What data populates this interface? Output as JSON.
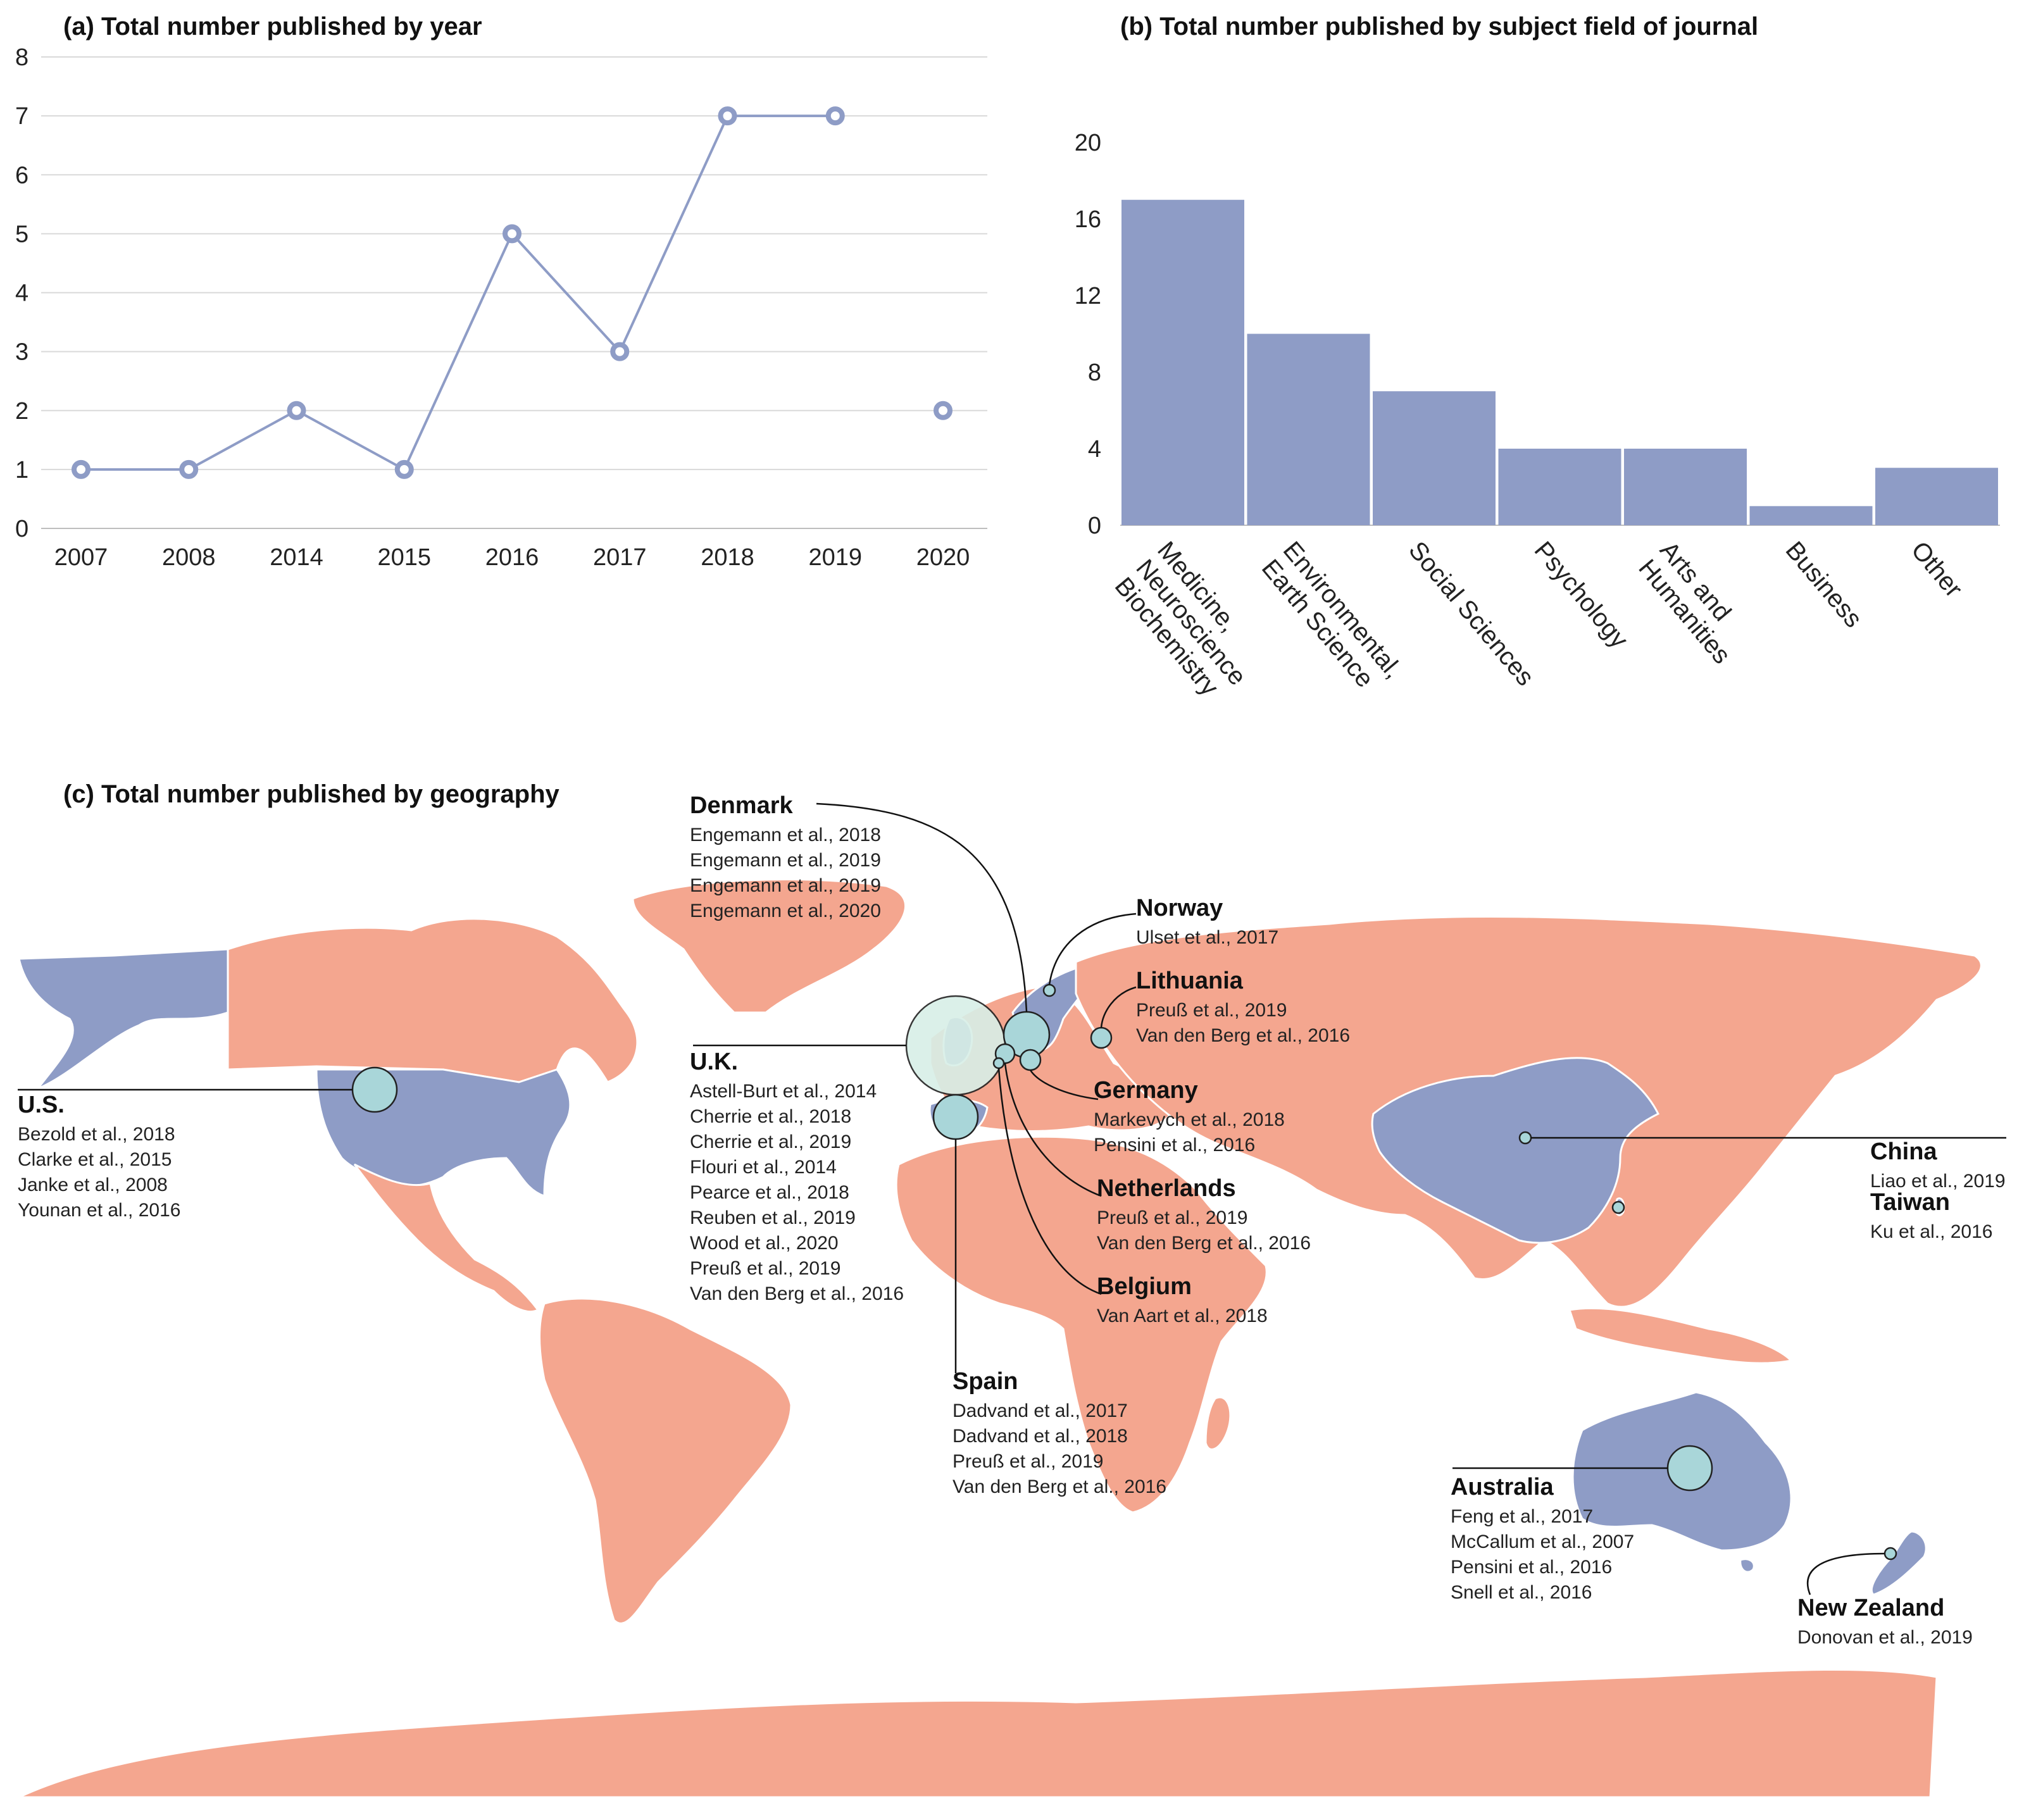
{
  "colors": {
    "series": "#8e9cc6",
    "land": "#f4a68f",
    "highlight_land": "#8e9cc6",
    "bubble": "#a9d6d9"
  },
  "chart_data": [
    {
      "id": "a",
      "type": "line",
      "title": "(a) Total number published by year",
      "categories": [
        "2007",
        "2008",
        "2014",
        "2015",
        "2016",
        "2017",
        "2018",
        "2019",
        "2020"
      ],
      "values": [
        1,
        1,
        2,
        1,
        5,
        3,
        7,
        7,
        2
      ],
      "connected_through_index": 7,
      "ylim": [
        0,
        8
      ],
      "yticks": [
        0,
        1,
        2,
        3,
        4,
        5,
        6,
        7,
        8
      ],
      "grid": true
    },
    {
      "id": "b",
      "type": "bar",
      "title": "(b) Total number published by subject field of journal",
      "categories": [
        "Medicine, Neuroscience, Biochemistry",
        "Environmental, Earth Science",
        "Social Sciences",
        "Psychology",
        "Arts and Humanities",
        "Business",
        "Other"
      ],
      "category_lines": [
        [
          "Medicine,",
          "Neuroscience",
          "Biochemistry"
        ],
        [
          "Environmental,",
          "Earth Science"
        ],
        [
          "Social Sciences"
        ],
        [
          "Psychology"
        ],
        [
          "Arts and",
          "Humanities"
        ],
        [
          "Business"
        ],
        [
          "Other"
        ]
      ],
      "values": [
        17,
        10,
        7,
        4,
        4,
        1,
        3
      ],
      "ylim": [
        0,
        20
      ],
      "yticks": [
        0,
        4,
        8,
        12,
        16,
        20
      ]
    }
  ],
  "geography": {
    "title": "(c) Total number published by geography",
    "countries": [
      {
        "name": "Denmark",
        "refs": [
          "Engemann et al., 2018",
          "Engemann et al., 2019",
          "Engemann et al., 2019",
          "Engemann et al., 2020"
        ]
      },
      {
        "name": "Norway",
        "refs": [
          "Ulset et al., 2017"
        ]
      },
      {
        "name": "Lithuania",
        "refs": [
          "Preuß et al., 2019",
          "Van den Berg et al., 2016"
        ]
      },
      {
        "name": "U.K.",
        "refs": [
          "Astell-Burt et al., 2014",
          "Cherrie et al., 2018",
          "Cherrie et al., 2019",
          "Flouri et al., 2014",
          "Pearce et al., 2018",
          "Reuben et al., 2019",
          "Wood et al., 2020",
          "Preuß et al., 2019",
          "Van den Berg et al., 2016"
        ]
      },
      {
        "name": "U.S.",
        "refs": [
          "Bezold et al., 2018",
          "Clarke et al., 2015",
          "Janke et al., 2008",
          "Younan et al., 2016"
        ]
      },
      {
        "name": "Germany",
        "refs": [
          "Markevych et al., 2018",
          "Pensini et al., 2016"
        ]
      },
      {
        "name": "Netherlands",
        "refs": [
          "Preuß et al., 2019",
          "Van den Berg et al., 2016"
        ]
      },
      {
        "name": "Belgium",
        "refs": [
          "Van Aart et al., 2018"
        ]
      },
      {
        "name": "Spain",
        "refs": [
          "Dadvand et al., 2017",
          "Dadvand et al., 2018",
          "Preuß et al., 2019",
          "Van den Berg et al., 2016"
        ]
      },
      {
        "name": "China",
        "refs": [
          "Liao et al., 2019"
        ]
      },
      {
        "name": "Taiwan",
        "refs": [
          "Ku et al., 2016"
        ]
      },
      {
        "name": "Australia",
        "refs": [
          "Feng et al., 2017",
          "McCallum et al., 2007",
          "Pensini et al., 2016",
          "Snell et al., 2016"
        ]
      },
      {
        "name": "New Zealand",
        "refs": [
          "Donovan et al., 2019"
        ]
      }
    ]
  }
}
